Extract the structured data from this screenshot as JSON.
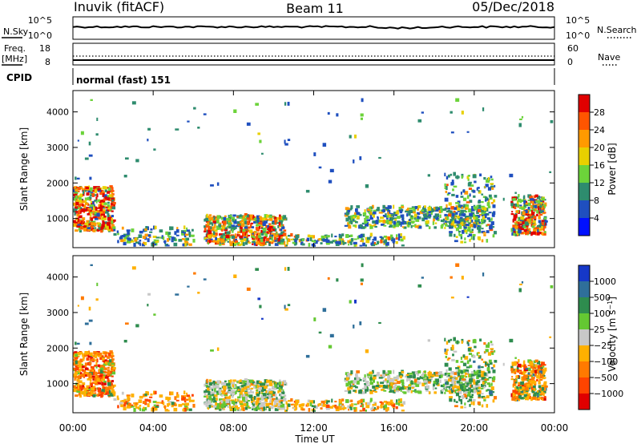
{
  "header": {
    "station": "Inuvik (fitACF)",
    "beam": "Beam 11",
    "date": "05/Dec/2018"
  },
  "panels": {
    "nsky": {
      "left_label": "N.Sky",
      "left_ticks": [
        "10^5",
        "10^0"
      ],
      "right_label": "N.Search",
      "right_ticks": [
        "10^5",
        "10^0"
      ]
    },
    "freq": {
      "left_label": "Freq.",
      "left_unit": "[MHz]",
      "left_ticks": [
        "18",
        "8"
      ],
      "right_label": "Nave",
      "right_ticks": [
        "60",
        "0"
      ]
    },
    "cpid": {
      "label": "CPID",
      "value": "normal (fast) 151"
    }
  },
  "chart_data": [
    {
      "type": "heatmap",
      "title": "",
      "xlabel": "",
      "ylabel": "Slant Range [km]",
      "xlim": [
        "00:00",
        "24:00"
      ],
      "ylim": [
        180,
        4600
      ],
      "y_ticks": [
        "1000",
        "2000",
        "3000",
        "4000"
      ],
      "colorbar": {
        "label": "Power [dB]",
        "ticks": [
          "4",
          "8",
          "12",
          "16",
          "20",
          "24",
          "28"
        ],
        "colors": [
          "#0010ff",
          "#1f4fbf",
          "#2e8c6e",
          "#6cd33a",
          "#e8d000",
          "#ff9a00",
          "#ff5500",
          "#e00000"
        ]
      }
    },
    {
      "type": "heatmap",
      "title": "",
      "xlabel": "Time UT",
      "ylabel": "Slant Range [km]",
      "xlim": [
        "00:00",
        "24:00"
      ],
      "ylim": [
        180,
        4600
      ],
      "x_ticks": [
        "00:00",
        "04:00",
        "08:00",
        "12:00",
        "16:00",
        "20:00",
        "00:00"
      ],
      "y_ticks": [
        "1000",
        "2000",
        "3000",
        "4000"
      ],
      "colorbar": {
        "label": "Velocity [m s^-1]",
        "ticks": [
          "1000",
          "500",
          "100",
          "25",
          "−25",
          "−100",
          "−500",
          "−1000"
        ],
        "colors": [
          "#1638c8",
          "#2f6f9a",
          "#2e8c4e",
          "#64c832",
          "#c8c8c8",
          "#ffb000",
          "#ff7a00",
          "#ff4400",
          "#e00000"
        ]
      }
    }
  ]
}
